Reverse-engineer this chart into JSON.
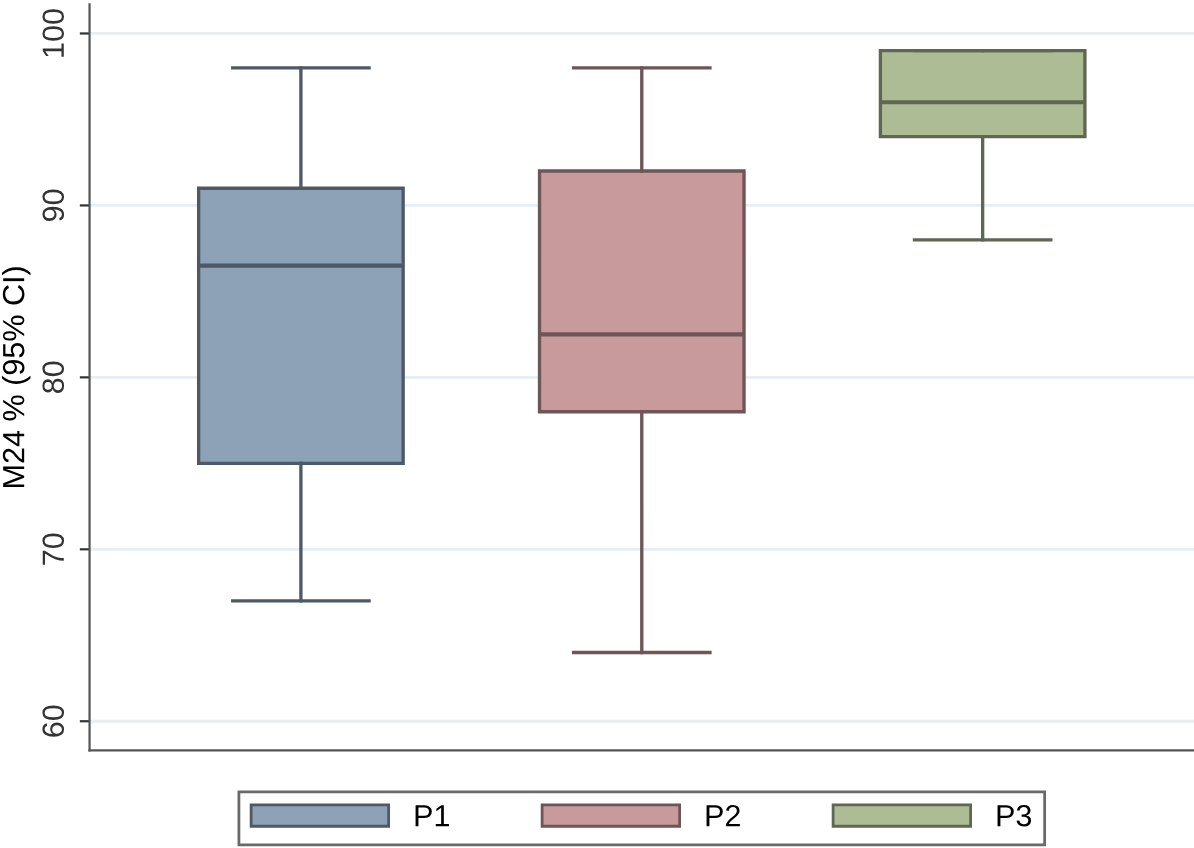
{
  "chart_data": {
    "type": "box",
    "ylabel": "M24 % (95% CI)",
    "categories": [
      null,
      null,
      null
    ],
    "ylim": [
      58.3,
      101.7
    ],
    "yticks": [
      60,
      70,
      80,
      90,
      100
    ],
    "grid": "y",
    "legend": "bottom",
    "series": [
      {
        "name": "P1",
        "color": "#8da2b7",
        "boxes": [
          {
            "low": 67,
            "q1": 75,
            "median": 86.5,
            "q3": 91,
            "high": 98
          },
          null,
          null
        ]
      },
      {
        "name": "P2",
        "color": "#c89a9c",
        "boxes": [
          null,
          {
            "low": 64,
            "q1": 78,
            "median": 82.5,
            "q3": 92,
            "high": 98
          },
          null
        ]
      },
      {
        "name": "P3",
        "color": "#adbc95",
        "boxes": [
          null,
          null,
          {
            "low": 88,
            "q1": 94,
            "median": 96,
            "q3": 99,
            "high": 99
          }
        ]
      }
    ]
  }
}
